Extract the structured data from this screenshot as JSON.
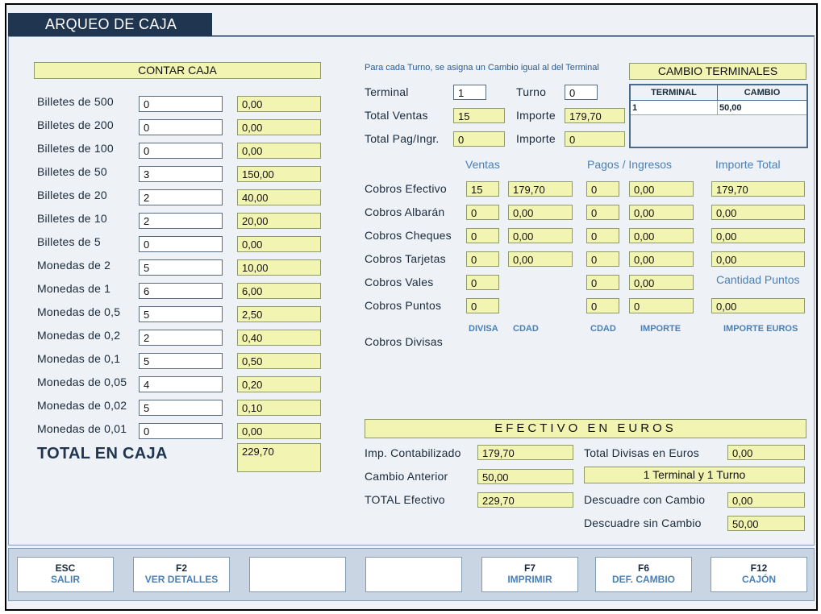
{
  "window": {
    "title": "ARQUEO DE CAJA"
  },
  "contar": {
    "header": "CONTAR CAJA",
    "rows": [
      {
        "label": "Billetes de 500",
        "qty": "0",
        "amount": "0,00"
      },
      {
        "label": "Billetes de 200",
        "qty": "0",
        "amount": "0,00"
      },
      {
        "label": "Billetes de 100",
        "qty": "0",
        "amount": "0,00"
      },
      {
        "label": "Billetes de 50",
        "qty": "3",
        "amount": "150,00"
      },
      {
        "label": "Billetes de 20",
        "qty": "2",
        "amount": "40,00"
      },
      {
        "label": "Billetes de 10",
        "qty": "2",
        "amount": "20,00"
      },
      {
        "label": "Billetes de 5",
        "qty": "0",
        "amount": "0,00"
      },
      {
        "label": "Monedas de 2",
        "qty": "5",
        "amount": "10,00"
      },
      {
        "label": "Monedas de 1",
        "qty": "6",
        "amount": "6,00"
      },
      {
        "label": "Monedas de 0,5",
        "qty": "5",
        "amount": "2,50"
      },
      {
        "label": "Monedas de 0,2",
        "qty": "2",
        "amount": "0,40"
      },
      {
        "label": "Monedas de 0,1",
        "qty": "5",
        "amount": "0,50"
      },
      {
        "label": "Monedas de 0,05",
        "qty": "4",
        "amount": "0,20"
      },
      {
        "label": "Monedas de 0,02",
        "qty": "5",
        "amount": "0,10"
      },
      {
        "label": "Monedas de 0,01",
        "qty": "0",
        "amount": "0,00"
      }
    ],
    "total_label": "TOTAL EN CAJA",
    "total_value": "229,70"
  },
  "info": {
    "note": "Para cada Turno, se asigna un Cambio igual al del Terminal",
    "terminal_label": "Terminal",
    "terminal_value": "1",
    "turno_label": "Turno",
    "turno_value": "0",
    "total_ventas_label": "Total Ventas",
    "total_ventas_value": "15",
    "importe1_label": "Importe",
    "importe1_value": "179,70",
    "total_pag_label": "Total Pag/Ingr.",
    "total_pag_value": "0",
    "importe2_label": "Importe",
    "importe2_value": "0"
  },
  "cambio_terminales": {
    "header": "CAMBIO TERMINALES",
    "columns": [
      "TERMINAL",
      "CAMBIO"
    ],
    "rows": [
      [
        "1",
        "50,00"
      ]
    ]
  },
  "cobros": {
    "col_ventas": "Ventas",
    "col_pagos": "Pagos / Ingresos",
    "col_importe": "Importe Total",
    "cantidad_puntos": "Cantidad Puntos",
    "rows": [
      {
        "label": "Cobros Efectivo",
        "v_cnt": "15",
        "v_imp": "179,70",
        "p_cnt": "0",
        "p_imp": "0,00",
        "total": "179,70"
      },
      {
        "label": "Cobros Albarán",
        "v_cnt": "0",
        "v_imp": "0,00",
        "p_cnt": "0",
        "p_imp": "0,00",
        "total": "0,00"
      },
      {
        "label": "Cobros Cheques",
        "v_cnt": "0",
        "v_imp": "0,00",
        "p_cnt": "0",
        "p_imp": "0,00",
        "total": "0,00"
      },
      {
        "label": "Cobros Tarjetas",
        "v_cnt": "0",
        "v_imp": "0,00",
        "p_cnt": "0",
        "p_imp": "0,00",
        "total": "0,00"
      },
      {
        "label": "Cobros Vales",
        "v_cnt": "0",
        "p_cnt": "0",
        "p_imp": "0,00"
      },
      {
        "label": "Cobros Puntos",
        "v_cnt": "0",
        "p_cnt": "0",
        "p_imp": "0",
        "total": "0,00"
      }
    ],
    "divisas": {
      "label": "Cobros Divisas",
      "cols": [
        "DIVISA",
        "CDAD",
        "CDAD",
        "IMPORTE",
        "IMPORTE EUROS"
      ]
    }
  },
  "efectivo": {
    "header": "EFECTIVO EN EUROS",
    "imp_contab_label": "Imp. Contabilizado",
    "imp_contab_value": "179,70",
    "cambio_ant_label": "Cambio Anterior",
    "cambio_ant_value": "50,00",
    "total_ef_label": "TOTAL Efectivo",
    "total_ef_value": "229,70",
    "total_divisas_label": "Total Divisas en Euros",
    "total_divisas_value": "0,00",
    "terminal_turno": "1 Terminal y 1 Turno",
    "descuadre_con_label": "Descuadre con Cambio",
    "descuadre_con_value": "0,00",
    "descuadre_sin_label": "Descuadre sin Cambio",
    "descuadre_sin_value": "50,00"
  },
  "footer": {
    "buttons": [
      {
        "key": "ESC",
        "text": "SALIR"
      },
      {
        "key": "F2",
        "text": "VER DETALLES"
      },
      {
        "key": "",
        "text": ""
      },
      {
        "key": "",
        "text": ""
      },
      {
        "key": "F7",
        "text": "IMPRIMIR"
      },
      {
        "key": "F6",
        "text": "DEF. CAMBIO"
      },
      {
        "key": "F12",
        "text": "CAJÓN"
      }
    ]
  }
}
